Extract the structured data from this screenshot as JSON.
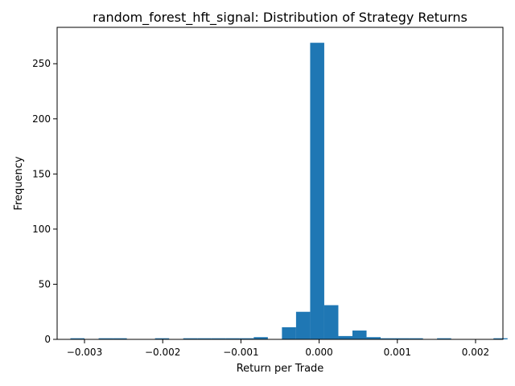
{
  "chart_data": {
    "type": "bar",
    "title": "random_forest_hft_signal: Distribution of Strategy Returns",
    "xlabel": "Return per Trade",
    "ylabel": "Frequency",
    "xlim": [
      -0.00335,
      0.00235
    ],
    "ylim": [
      0,
      283
    ],
    "xticks": [
      {
        "value": -0.003,
        "label": "−0.003"
      },
      {
        "value": -0.002,
        "label": "−0.002"
      },
      {
        "value": -0.001,
        "label": "−0.001"
      },
      {
        "value": 0.0,
        "label": "0.000"
      },
      {
        "value": 0.001,
        "label": "0.001"
      },
      {
        "value": 0.002,
        "label": "0.002"
      }
    ],
    "yticks": [
      {
        "value": 0,
        "label": "0"
      },
      {
        "value": 50,
        "label": "50"
      },
      {
        "value": 100,
        "label": "100"
      },
      {
        "value": 150,
        "label": "150"
      },
      {
        "value": 200,
        "label": "200"
      },
      {
        "value": 250,
        "label": "250"
      }
    ],
    "bin_start": -0.00318,
    "bin_width": 0.0001803,
    "values": [
      1,
      0,
      1,
      1,
      0,
      0,
      1,
      0,
      1,
      1,
      1,
      1,
      1,
      2,
      0,
      11,
      25,
      269,
      31,
      3,
      8,
      2,
      1,
      1,
      1,
      0,
      1,
      0,
      0,
      0,
      1
    ],
    "grid": false,
    "legend": "none",
    "bar_color": "#1f77b4"
  }
}
